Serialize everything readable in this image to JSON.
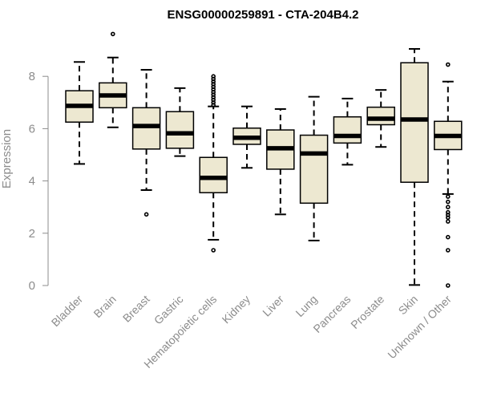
{
  "chart_data": {
    "type": "boxplot",
    "title": "ENSG00000259891 - CTA-204B4.2",
    "xlabel": "",
    "ylabel": "Expression",
    "ylim": [
      0,
      9.8
    ],
    "yticks": [
      0,
      2,
      4,
      6,
      8
    ],
    "box_fill": "#ede8d1",
    "series": [
      {
        "name": "Bladder",
        "whisker_low": 4.65,
        "q1": 6.25,
        "median": 6.87,
        "q3": 7.45,
        "whisker_high": 8.55,
        "outliers": []
      },
      {
        "name": "Brain",
        "whisker_low": 6.05,
        "q1": 6.8,
        "median": 7.27,
        "q3": 7.75,
        "whisker_high": 8.72,
        "outliers": [
          9.62
        ]
      },
      {
        "name": "Breast",
        "whisker_low": 3.65,
        "q1": 5.22,
        "median": 6.1,
        "q3": 6.8,
        "whisker_high": 8.25,
        "outliers": [
          2.72
        ]
      },
      {
        "name": "Gastric",
        "whisker_low": 4.95,
        "q1": 5.25,
        "median": 5.82,
        "q3": 6.65,
        "whisker_high": 7.55,
        "outliers": []
      },
      {
        "name": "Hematopoietic cells",
        "whisker_low": 1.75,
        "q1": 3.55,
        "median": 4.12,
        "q3": 4.9,
        "whisker_high": 6.85,
        "outliers": [
          1.35,
          6.9,
          7.0,
          7.1,
          7.2,
          7.3,
          7.4,
          7.5,
          7.6,
          7.7,
          7.8,
          7.9,
          8.0
        ]
      },
      {
        "name": "Kidney",
        "whisker_low": 4.5,
        "q1": 5.4,
        "median": 5.65,
        "q3": 6.02,
        "whisker_high": 6.85,
        "outliers": []
      },
      {
        "name": "Liver",
        "whisker_low": 2.72,
        "q1": 4.45,
        "median": 5.25,
        "q3": 5.95,
        "whisker_high": 6.75,
        "outliers": []
      },
      {
        "name": "Lung",
        "whisker_low": 1.72,
        "q1": 3.15,
        "median": 5.05,
        "q3": 5.75,
        "whisker_high": 7.22,
        "outliers": []
      },
      {
        "name": "Pancreas",
        "whisker_low": 4.62,
        "q1": 5.45,
        "median": 5.72,
        "q3": 6.45,
        "whisker_high": 7.15,
        "outliers": []
      },
      {
        "name": "Prostate",
        "whisker_low": 5.3,
        "q1": 6.15,
        "median": 6.38,
        "q3": 6.82,
        "whisker_high": 7.48,
        "outliers": []
      },
      {
        "name": "Skin",
        "whisker_low": 0.02,
        "q1": 3.95,
        "median": 6.35,
        "q3": 8.52,
        "whisker_high": 9.05,
        "outliers": []
      },
      {
        "name": "Unknown / Other",
        "whisker_low": 3.5,
        "q1": 5.2,
        "median": 5.72,
        "q3": 6.28,
        "whisker_high": 7.8,
        "outliers": [
          0.0,
          1.35,
          1.85,
          2.45,
          2.6,
          2.7,
          2.8,
          3.0,
          3.2,
          3.4,
          8.45
        ]
      }
    ]
  }
}
